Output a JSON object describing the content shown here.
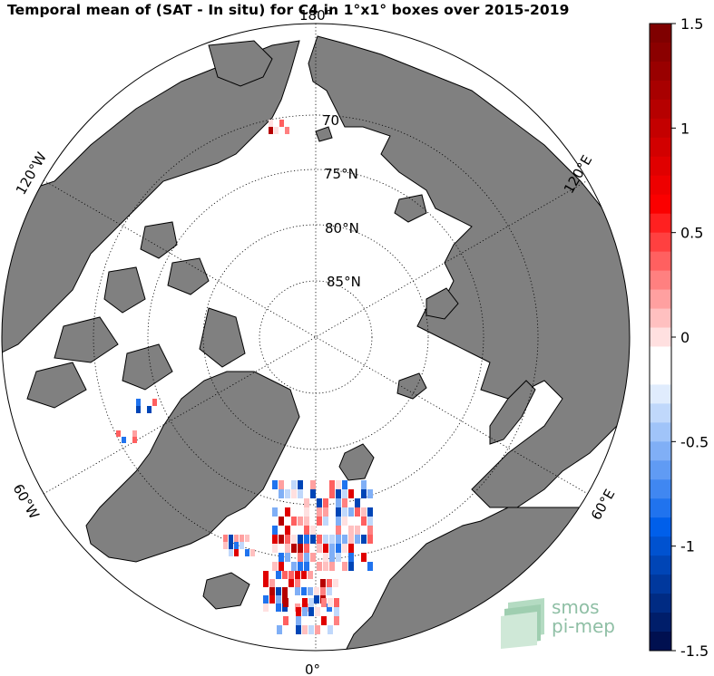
{
  "title": "Temporal mean of (SAT - In situ) for C4 in 1°x1° boxes over 2015-2019",
  "map": {
    "projection": "north-polar-stereographic",
    "latitude_labels": [
      "70",
      "75°N",
      "80°N",
      "85°N"
    ],
    "longitude_labels": {
      "top": "180°",
      "bottom": "0°",
      "left_upper": "120°W",
      "left_lower": "60°W",
      "right_upper": "120°E",
      "right_lower": "60°E"
    },
    "land_color": "#808080",
    "ocean_color": "#ffffff"
  },
  "colorbar": {
    "min": -1.5,
    "max": 1.5,
    "ticks": [
      "1.5",
      "1",
      "0.5",
      "0",
      "-0.5",
      "-1",
      "-1.5"
    ],
    "colors_top_to_bottom": [
      "#7f0000",
      "#8b0000",
      "#990000",
      "#a80000",
      "#b60000",
      "#c40000",
      "#d20000",
      "#e00000",
      "#ee0000",
      "#fb0000",
      "#ff2020",
      "#ff4040",
      "#ff6060",
      "#ff8080",
      "#ffa0a0",
      "#ffc0c0",
      "#ffe0e0",
      "#ffffff",
      "#ffffff",
      "#e0ecfd",
      "#c0d8fb",
      "#a0c4f9",
      "#80aff6",
      "#609bf4",
      "#4087f1",
      "#2073ee",
      "#005fea",
      "#0052d0",
      "#0045b6",
      "#00389d",
      "#002b83",
      "#001e6a",
      "#001050"
    ]
  },
  "logo": {
    "line1": "smos",
    "line2": "pi-mep"
  }
}
